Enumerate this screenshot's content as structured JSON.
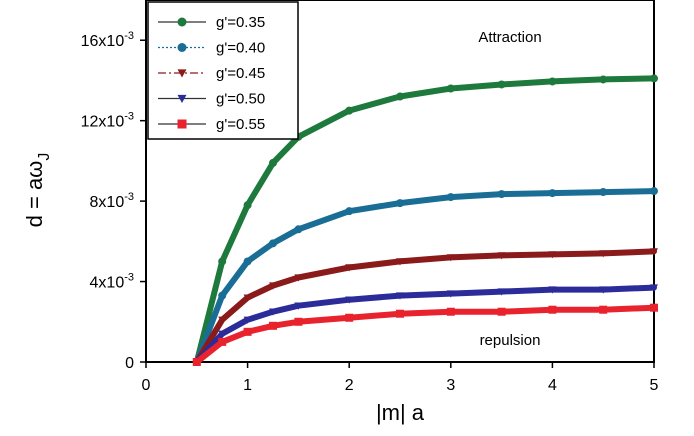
{
  "chart_data": {
    "type": "line",
    "xlabel": "|m| a",
    "ylabel": "d = aω",
    "ylabel_sub": "J",
    "xlim": [
      0,
      5
    ],
    "ylim": [
      0,
      0.018
    ],
    "x_ticks": [
      0,
      1,
      2,
      3,
      4,
      5
    ],
    "x_tick_labels": [
      "0",
      "1",
      "2",
      "3",
      "4",
      "5"
    ],
    "y_ticks": [
      0,
      0.004,
      0.008,
      0.012,
      0.016
    ],
    "y_tick_labels": [
      {
        "base": "0",
        "exp": ""
      },
      {
        "base": "4x10",
        "exp": "-3"
      },
      {
        "base": "8x10",
        "exp": "-3"
      },
      {
        "base": "12x10",
        "exp": "-3"
      },
      {
        "base": "16x10",
        "exp": "-3"
      }
    ],
    "grid": false,
    "legend_position": "top-left",
    "annotations": [
      {
        "text": "Attraction",
        "x": 3.7,
        "y": 0.016
      },
      {
        "text": "repulsion",
        "x": 3.6,
        "y": 0.001
      }
    ],
    "series": [
      {
        "name": "g'=0.35",
        "color": "#1e7a3c",
        "marker": "circle",
        "line": "solid",
        "x": [
          0.5,
          0.75,
          1.0,
          1.25,
          1.5,
          2.0,
          2.5,
          3.0,
          3.5,
          4.0,
          4.5,
          5.0
        ],
        "y": [
          0.0,
          0.005,
          0.0078,
          0.0099,
          0.0112,
          0.0125,
          0.0132,
          0.0136,
          0.0138,
          0.01395,
          0.01405,
          0.0141
        ]
      },
      {
        "name": "g'=0.40",
        "color": "#1a6e96",
        "marker": "circle",
        "line": "dotted",
        "x": [
          0.5,
          0.75,
          1.0,
          1.25,
          1.5,
          2.0,
          2.5,
          3.0,
          3.5,
          4.0,
          4.5,
          5.0
        ],
        "y": [
          0.0,
          0.0033,
          0.005,
          0.0059,
          0.0066,
          0.0075,
          0.0079,
          0.0082,
          0.00835,
          0.0084,
          0.00845,
          0.0085
        ]
      },
      {
        "name": "g'=0.45",
        "color": "#8b1a1a",
        "marker": "triangle-down",
        "line": "dashdot",
        "x": [
          0.5,
          0.75,
          1.0,
          1.25,
          1.5,
          2.0,
          2.5,
          3.0,
          3.5,
          4.0,
          4.5,
          5.0
        ],
        "y": [
          0.0,
          0.0021,
          0.0032,
          0.0038,
          0.0042,
          0.0047,
          0.005,
          0.0052,
          0.0053,
          0.00535,
          0.0054,
          0.0055
        ]
      },
      {
        "name": "g'=0.50",
        "color": "#2b2b9a",
        "marker": "triangle-down",
        "line": "solid",
        "x": [
          0.5,
          0.75,
          1.0,
          1.25,
          1.5,
          2.0,
          2.5,
          3.0,
          3.5,
          4.0,
          4.5,
          5.0
        ],
        "y": [
          0.0,
          0.0014,
          0.0021,
          0.0025,
          0.0028,
          0.0031,
          0.0033,
          0.0034,
          0.0035,
          0.0036,
          0.0036,
          0.0037
        ]
      },
      {
        "name": "g'=0.55",
        "color": "#e8232d",
        "marker": "square",
        "line": "solid",
        "x": [
          0.5,
          0.75,
          1.0,
          1.25,
          1.5,
          2.0,
          2.5,
          3.0,
          3.5,
          4.0,
          4.5,
          5.0
        ],
        "y": [
          0.0,
          0.001,
          0.0015,
          0.0018,
          0.002,
          0.0022,
          0.0024,
          0.0025,
          0.0025,
          0.0026,
          0.0026,
          0.0027
        ]
      }
    ]
  }
}
